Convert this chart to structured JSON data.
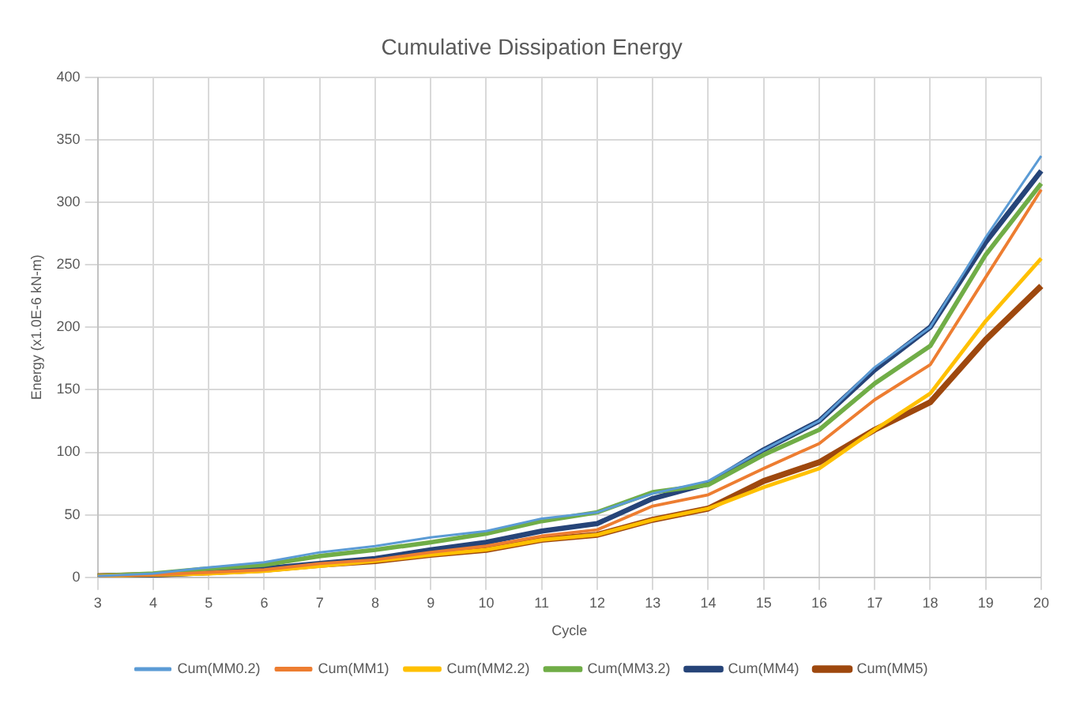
{
  "chart_data": {
    "type": "line",
    "title": "Cumulative Dissipation Energy",
    "xlabel": "Cycle",
    "ylabel": "Energy (x1.0E-6 kN-m)",
    "categories": [
      "3",
      "4",
      "5",
      "6",
      "7",
      "8",
      "9",
      "10",
      "11",
      "12",
      "13",
      "14",
      "15",
      "16",
      "17",
      "18",
      "19",
      "20"
    ],
    "ylim": [
      0,
      400
    ],
    "yticks": [
      0,
      50,
      100,
      150,
      200,
      250,
      300,
      350,
      400
    ],
    "grid": true,
    "legend": "bottom",
    "marker": "none",
    "line_style": "solid",
    "series": [
      {
        "name": "Cum(MM0.2)",
        "color": "#5b9bd5",
        "values": [
          1,
          3,
          8,
          12,
          20,
          25,
          32,
          37,
          47,
          52,
          67,
          77,
          102,
          125,
          168,
          200,
          272,
          337
        ]
      },
      {
        "name": "Cum(MM1)",
        "color": "#ed7d31",
        "values": [
          1,
          2,
          4,
          6,
          11,
          14,
          20,
          25,
          33,
          38,
          57,
          66,
          87,
          107,
          142,
          170,
          240,
          310
        ]
      },
      {
        "name": "Cum(MM2.2)",
        "color": "#ffc000",
        "values": [
          1,
          2,
          3,
          5,
          9,
          13,
          18,
          22,
          30,
          34,
          46,
          55,
          72,
          87,
          118,
          147,
          205,
          255
        ]
      },
      {
        "name": "Cum(MM3.2)",
        "color": "#70ad47",
        "values": [
          1,
          3,
          7,
          10,
          17,
          22,
          28,
          35,
          45,
          52,
          68,
          74,
          98,
          118,
          155,
          185,
          258,
          315
        ]
      },
      {
        "name": "Cum(MM4)",
        "color": "#264478",
        "values": [
          1,
          2,
          4,
          7,
          11,
          15,
          22,
          28,
          37,
          43,
          63,
          75,
          102,
          125,
          166,
          200,
          268,
          325
        ]
      },
      {
        "name": "Cum(MM5)",
        "color": "#9e480e",
        "values": [
          1,
          2,
          4,
          6,
          10,
          13,
          18,
          22,
          30,
          34,
          46,
          55,
          77,
          92,
          118,
          140,
          190,
          233
        ]
      }
    ]
  }
}
